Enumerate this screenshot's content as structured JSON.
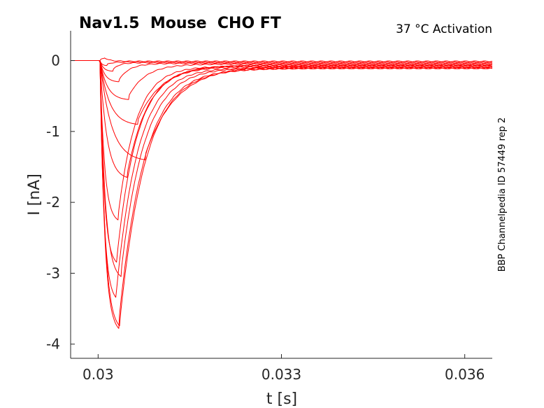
{
  "chart_data": {
    "type": "line",
    "title": "Nav1.5  Mouse  CHO FT",
    "subtitle": "37 °C  Activation",
    "side_note": "BBP Channelpedia ID 57449 rep 2",
    "xlabel": "t [s]",
    "ylabel": "I [nA]",
    "xlim": [
      0.02955,
      0.03645
    ],
    "ylim": [
      -4.2,
      0.42
    ],
    "xticks": [
      {
        "value": 0.03,
        "label": "0.03"
      },
      {
        "value": 0.033,
        "label": "0.033"
      },
      {
        "value": 0.036,
        "label": "0.036"
      }
    ],
    "yticks": [
      {
        "value": 0,
        "label": "0"
      },
      {
        "value": -1,
        "label": "-1"
      },
      {
        "value": -2,
        "label": "-2"
      },
      {
        "value": -3,
        "label": "-3"
      },
      {
        "value": -4,
        "label": "-4"
      }
    ],
    "grid": false,
    "color": "#ff0000",
    "onset_time": 0.03003,
    "series": [
      {
        "peak_time": 0.0301,
        "peak": 0.03,
        "end_value": -0.01
      },
      {
        "peak_time": 0.03015,
        "peak": -0.07,
        "end_value": -0.02
      },
      {
        "peak_time": 0.03025,
        "peak": -0.15,
        "end_value": -0.03
      },
      {
        "peak_time": 0.03035,
        "peak": -0.3,
        "end_value": -0.04
      },
      {
        "peak_time": 0.0305,
        "peak": -0.55,
        "end_value": -0.05
      },
      {
        "peak_time": 0.03065,
        "peak": -0.9,
        "end_value": -0.06
      },
      {
        "peak_time": 0.03077,
        "peak": -1.4,
        "end_value": -0.07
      },
      {
        "peak_time": 0.03048,
        "peak": -1.65,
        "end_value": -0.07
      },
      {
        "peak_time": 0.03033,
        "peak": -2.25,
        "end_value": -0.08
      },
      {
        "peak_time": 0.03031,
        "peak": -2.85,
        "end_value": -0.09
      },
      {
        "peak_time": 0.03038,
        "peak": -3.05,
        "end_value": -0.1
      },
      {
        "peak_time": 0.0303,
        "peak": -3.35,
        "end_value": -0.1
      },
      {
        "peak_time": 0.03034,
        "peak": -3.78,
        "end_value": -0.11
      },
      {
        "peak_time": 0.03036,
        "peak": -3.75,
        "end_value": -0.11
      }
    ]
  }
}
